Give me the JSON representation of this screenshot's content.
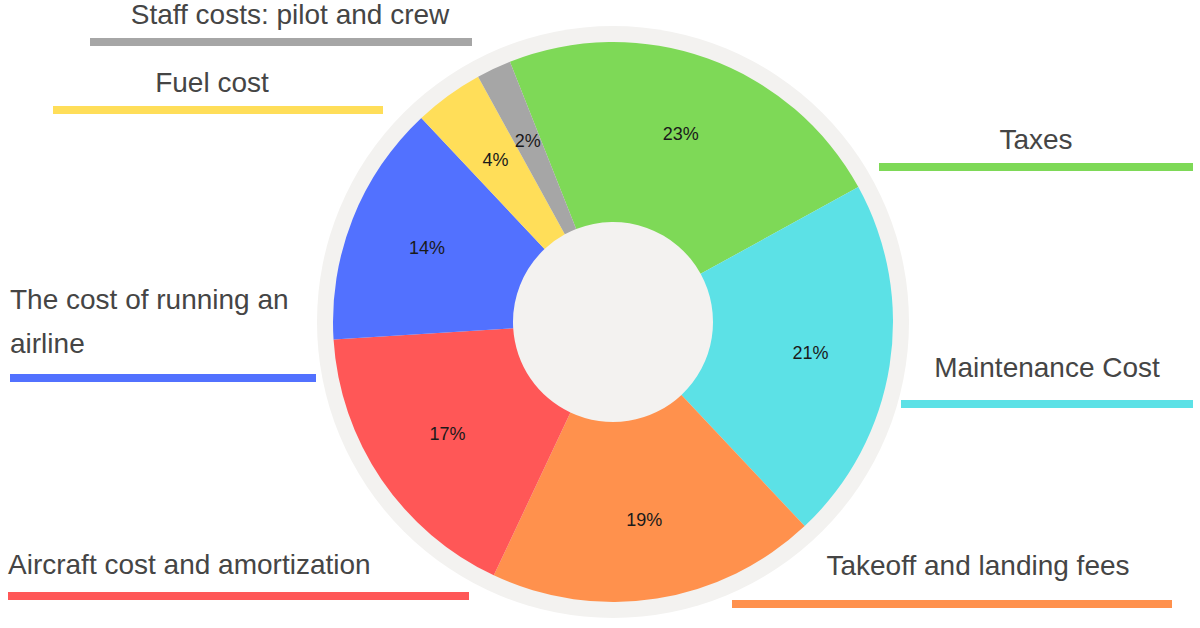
{
  "chart_data": {
    "type": "pie",
    "categories": [
      "Taxes",
      "Maintenance Cost",
      "Takeoff and landing fees",
      "Aircraft cost and amortization",
      "The cost of running an airline",
      "Fuel cost",
      "Staff costs: pilot and crew"
    ],
    "values": [
      23,
      21,
      19,
      17,
      14,
      4,
      2
    ],
    "value_labels": [
      "23%",
      "21%",
      "19%",
      "17%",
      "14%",
      "4%",
      "2%"
    ],
    "colors": [
      "#7ed957",
      "#5ce1e6",
      "#ff914d",
      "#ff5757",
      "#5271ff",
      "#ffde59",
      "#a6a6a6"
    ],
    "data_labels": true
  }
}
